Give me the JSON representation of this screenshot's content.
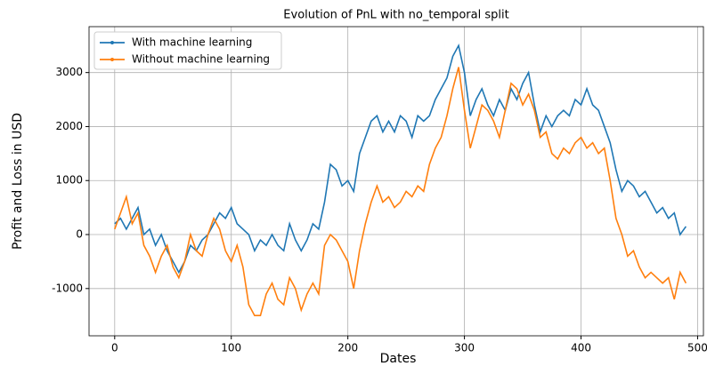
{
  "chart_data": {
    "type": "line",
    "title": "Evolution of PnL with no_temporal split",
    "xlabel": "Dates",
    "ylabel": "Profit and Loss in USD",
    "x": [
      0,
      5,
      10,
      15,
      20,
      25,
      30,
      35,
      40,
      45,
      50,
      55,
      60,
      65,
      70,
      75,
      80,
      85,
      90,
      95,
      100,
      105,
      110,
      115,
      120,
      125,
      130,
      135,
      140,
      145,
      150,
      155,
      160,
      165,
      170,
      175,
      180,
      185,
      190,
      195,
      200,
      205,
      210,
      215,
      220,
      225,
      230,
      235,
      240,
      245,
      250,
      255,
      260,
      265,
      270,
      275,
      280,
      285,
      290,
      295,
      300,
      305,
      310,
      315,
      320,
      325,
      330,
      335,
      340,
      345,
      350,
      355,
      360,
      365,
      370,
      375,
      380,
      385,
      390,
      395,
      400,
      405,
      410,
      415,
      420,
      425,
      430,
      435,
      440,
      445,
      450,
      455,
      460,
      465,
      470,
      475,
      480,
      485,
      490
    ],
    "series": [
      {
        "name": "With machine learning",
        "color": "#1f77b4",
        "values": [
          200,
          300,
          100,
          300,
          500,
          0,
          100,
          -200,
          0,
          -300,
          -500,
          -700,
          -500,
          -200,
          -300,
          -100,
          0,
          200,
          400,
          300,
          500,
          200,
          100,
          0,
          -300,
          -100,
          -200,
          0,
          -200,
          -300,
          200,
          -100,
          -300,
          -100,
          200,
          100,
          600,
          1300,
          1200,
          900,
          1000,
          800,
          1500,
          1800,
          2100,
          2200,
          1900,
          2100,
          1900,
          2200,
          2100,
          1800,
          2200,
          2100,
          2200,
          2500,
          2700,
          2900,
          3300,
          3500,
          3000,
          2200,
          2500,
          2700,
          2400,
          2200,
          2500,
          2300,
          2700,
          2500,
          2800,
          3000,
          2400,
          1900,
          2200,
          2000,
          2200,
          2300,
          2200,
          2500,
          2400,
          2700,
          2400,
          2300,
          2000,
          1700,
          1200,
          800,
          1000,
          900,
          700,
          800,
          600,
          400,
          500,
          300,
          400,
          0,
          150
        ]
      },
      {
        "name": "Without machine learning",
        "color": "#ff7f0e",
        "values": [
          100,
          400,
          700,
          200,
          400,
          -200,
          -400,
          -700,
          -400,
          -200,
          -600,
          -800,
          -500,
          0,
          -300,
          -400,
          0,
          300,
          100,
          -300,
          -500,
          -200,
          -600,
          -1300,
          -1500,
          -1500,
          -1100,
          -900,
          -1200,
          -1300,
          -800,
          -1000,
          -1400,
          -1100,
          -900,
          -1100,
          -200,
          0,
          -100,
          -300,
          -500,
          -1000,
          -300,
          200,
          600,
          900,
          600,
          700,
          500,
          600,
          800,
          700,
          900,
          800,
          1300,
          1600,
          1800,
          2200,
          2700,
          3100,
          2300,
          1600,
          2000,
          2400,
          2300,
          2100,
          1800,
          2300,
          2800,
          2700,
          2400,
          2600,
          2300,
          1800,
          1900,
          1500,
          1400,
          1600,
          1500,
          1700,
          1800,
          1600,
          1700,
          1500,
          1600,
          1000,
          300,
          0,
          -400,
          -300,
          -600,
          -800,
          -700,
          -800,
          -900,
          -800,
          -1200,
          -700,
          -900
        ]
      }
    ],
    "xlim": [
      -22,
      505
    ],
    "ylim": [
      -1875,
      3850
    ],
    "xticks": [
      0,
      100,
      200,
      300,
      400,
      500
    ],
    "yticks": [
      -1000,
      0,
      1000,
      2000,
      3000
    ],
    "grid": true,
    "legend": "upper left"
  }
}
